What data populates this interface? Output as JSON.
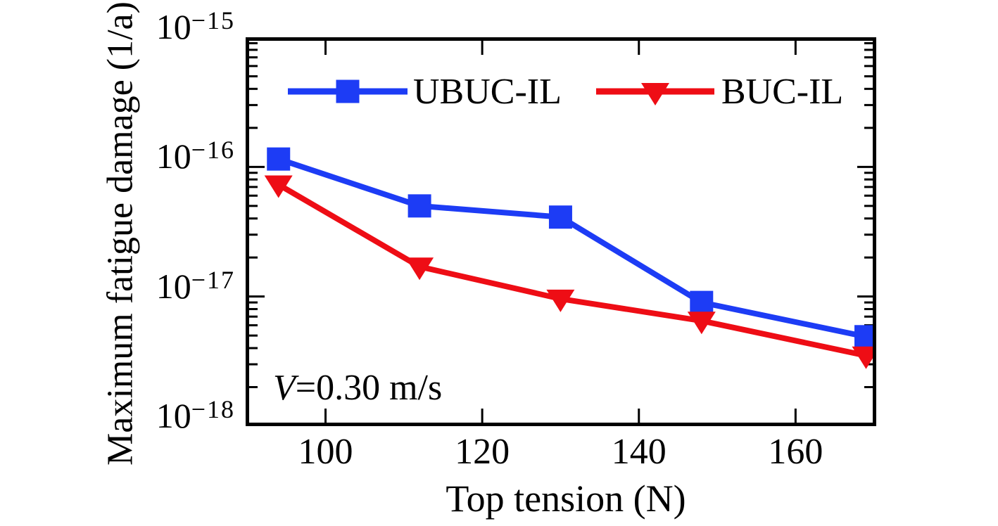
{
  "figure": {
    "annotation": {
      "variable": "V",
      "text": "=0.30 m/s"
    },
    "colors": {
      "ubuc_il": "#1d3cf5",
      "buc_il": "#ee0d15",
      "axis": "#000000",
      "background": "#ffffff",
      "text": "#000000"
    }
  },
  "chart_data": {
    "type": "line",
    "title": "",
    "xlabel": "Top tension (N)",
    "ylabel": "Maximum fatigue damage (1/a)",
    "x": [
      94,
      112,
      130,
      148,
      169
    ],
    "series": [
      {
        "name": "UBUC-IL",
        "color": "#1d3cf5",
        "marker": "square",
        "values": [
          1.15e-16,
          5e-17,
          4.1e-17,
          9e-18,
          4.9e-18
        ]
      },
      {
        "name": "BUC-IL",
        "color": "#ee0d15",
        "marker": "triangle-down",
        "values": [
          7.3e-17,
          1.7e-17,
          9.6e-18,
          6.5e-18,
          3.5e-18
        ]
      }
    ],
    "xlim": [
      89.8,
      170.3
    ],
    "ylim": [
      1e-18,
      1e-15
    ],
    "xscale": "linear",
    "yscale": "log",
    "x_ticks": [
      100,
      120,
      140,
      160
    ],
    "y_tick_base": "10",
    "y_ticks": [
      {
        "value": 1e-15,
        "exp": "−15"
      },
      {
        "value": 1e-16,
        "exp": "−16"
      },
      {
        "value": 1e-17,
        "exp": "−17"
      },
      {
        "value": 1e-18,
        "exp": "−18"
      }
    ],
    "grid": false,
    "legend_position": "top-inside",
    "annotation": "V=0.30 m/s"
  }
}
